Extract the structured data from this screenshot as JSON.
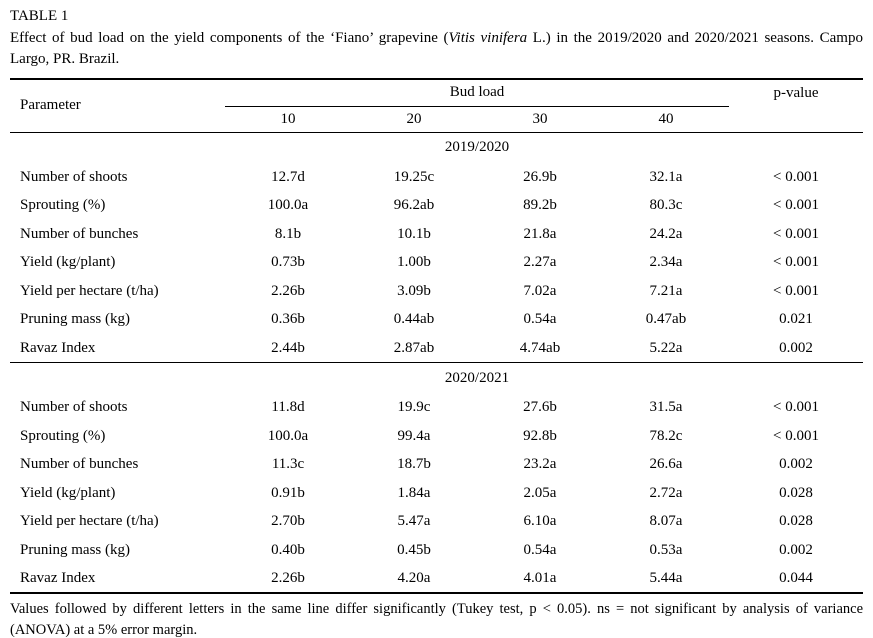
{
  "table_label": "TABLE 1",
  "caption": {
    "before_italic": "Effect of bud load on the yield components of the ‘Fiano’ grapevine (",
    "italic": "Vitis vinifera",
    "after_italic": " L.) in the 2019/2020 and 2020/2021 seasons. Campo Largo, PR. Brazil."
  },
  "header": {
    "parameter": "Parameter",
    "group": "Bud load",
    "levels": [
      "10",
      "20",
      "30",
      "40"
    ],
    "pvalue": "p-value"
  },
  "sections": [
    {
      "season": "2019/2020",
      "rows": [
        {
          "parameter": "Number of shoots",
          "values": [
            "12.7d",
            "19.25c",
            "26.9b",
            "32.1a"
          ],
          "p": "< 0.001"
        },
        {
          "parameter": "Sprouting (%)",
          "values": [
            "100.0a",
            "96.2ab",
            "89.2b",
            "80.3c"
          ],
          "p": "< 0.001"
        },
        {
          "parameter": "Number of bunches",
          "values": [
            "8.1b",
            "10.1b",
            "21.8a",
            "24.2a"
          ],
          "p": "< 0.001"
        },
        {
          "parameter": "Yield (kg/plant)",
          "values": [
            "0.73b",
            "1.00b",
            "2.27a",
            "2.34a"
          ],
          "p": "< 0.001"
        },
        {
          "parameter": "Yield per hectare (t/ha)",
          "values": [
            "2.26b",
            "3.09b",
            "7.02a",
            "7.21a"
          ],
          "p": "< 0.001"
        },
        {
          "parameter": "Pruning mass (kg)",
          "values": [
            "0.36b",
            "0.44ab",
            "0.54a",
            "0.47ab"
          ],
          "p": "0.021"
        },
        {
          "parameter": "Ravaz Index",
          "values": [
            "2.44b",
            "2.87ab",
            "4.74ab",
            "5.22a"
          ],
          "p": "0.002"
        }
      ]
    },
    {
      "season": "2020/2021",
      "rows": [
        {
          "parameter": "Number of shoots",
          "values": [
            "11.8d",
            "19.9c",
            "27.6b",
            "31.5a"
          ],
          "p": "< 0.001"
        },
        {
          "parameter": "Sprouting (%)",
          "values": [
            "100.0a",
            "99.4a",
            "92.8b",
            "78.2c"
          ],
          "p": "< 0.001"
        },
        {
          "parameter": "Number of bunches",
          "values": [
            "11.3c",
            "18.7b",
            "23.2a",
            "26.6a"
          ],
          "p": "0.002"
        },
        {
          "parameter": "Yield (kg/plant)",
          "values": [
            "0.91b",
            "1.84a",
            "2.05a",
            "2.72a"
          ],
          "p": "0.028"
        },
        {
          "parameter": "Yield per hectare (t/ha)",
          "values": [
            "2.70b",
            "5.47a",
            "6.10a",
            "8.07a"
          ],
          "p": "0.028"
        },
        {
          "parameter": "Pruning mass (kg)",
          "values": [
            "0.40b",
            "0.45b",
            "0.54a",
            "0.53a"
          ],
          "p": "0.002"
        },
        {
          "parameter": "Ravaz Index",
          "values": [
            "2.26b",
            "4.20a",
            "4.01a",
            "5.44a"
          ],
          "p": "0.044"
        }
      ]
    }
  ],
  "footnote": "Values followed by different letters in the same line differ significantly (Tukey test, p < 0.05). ns = not significant by analysis of variance (ANOVA) at a 5% error margin."
}
